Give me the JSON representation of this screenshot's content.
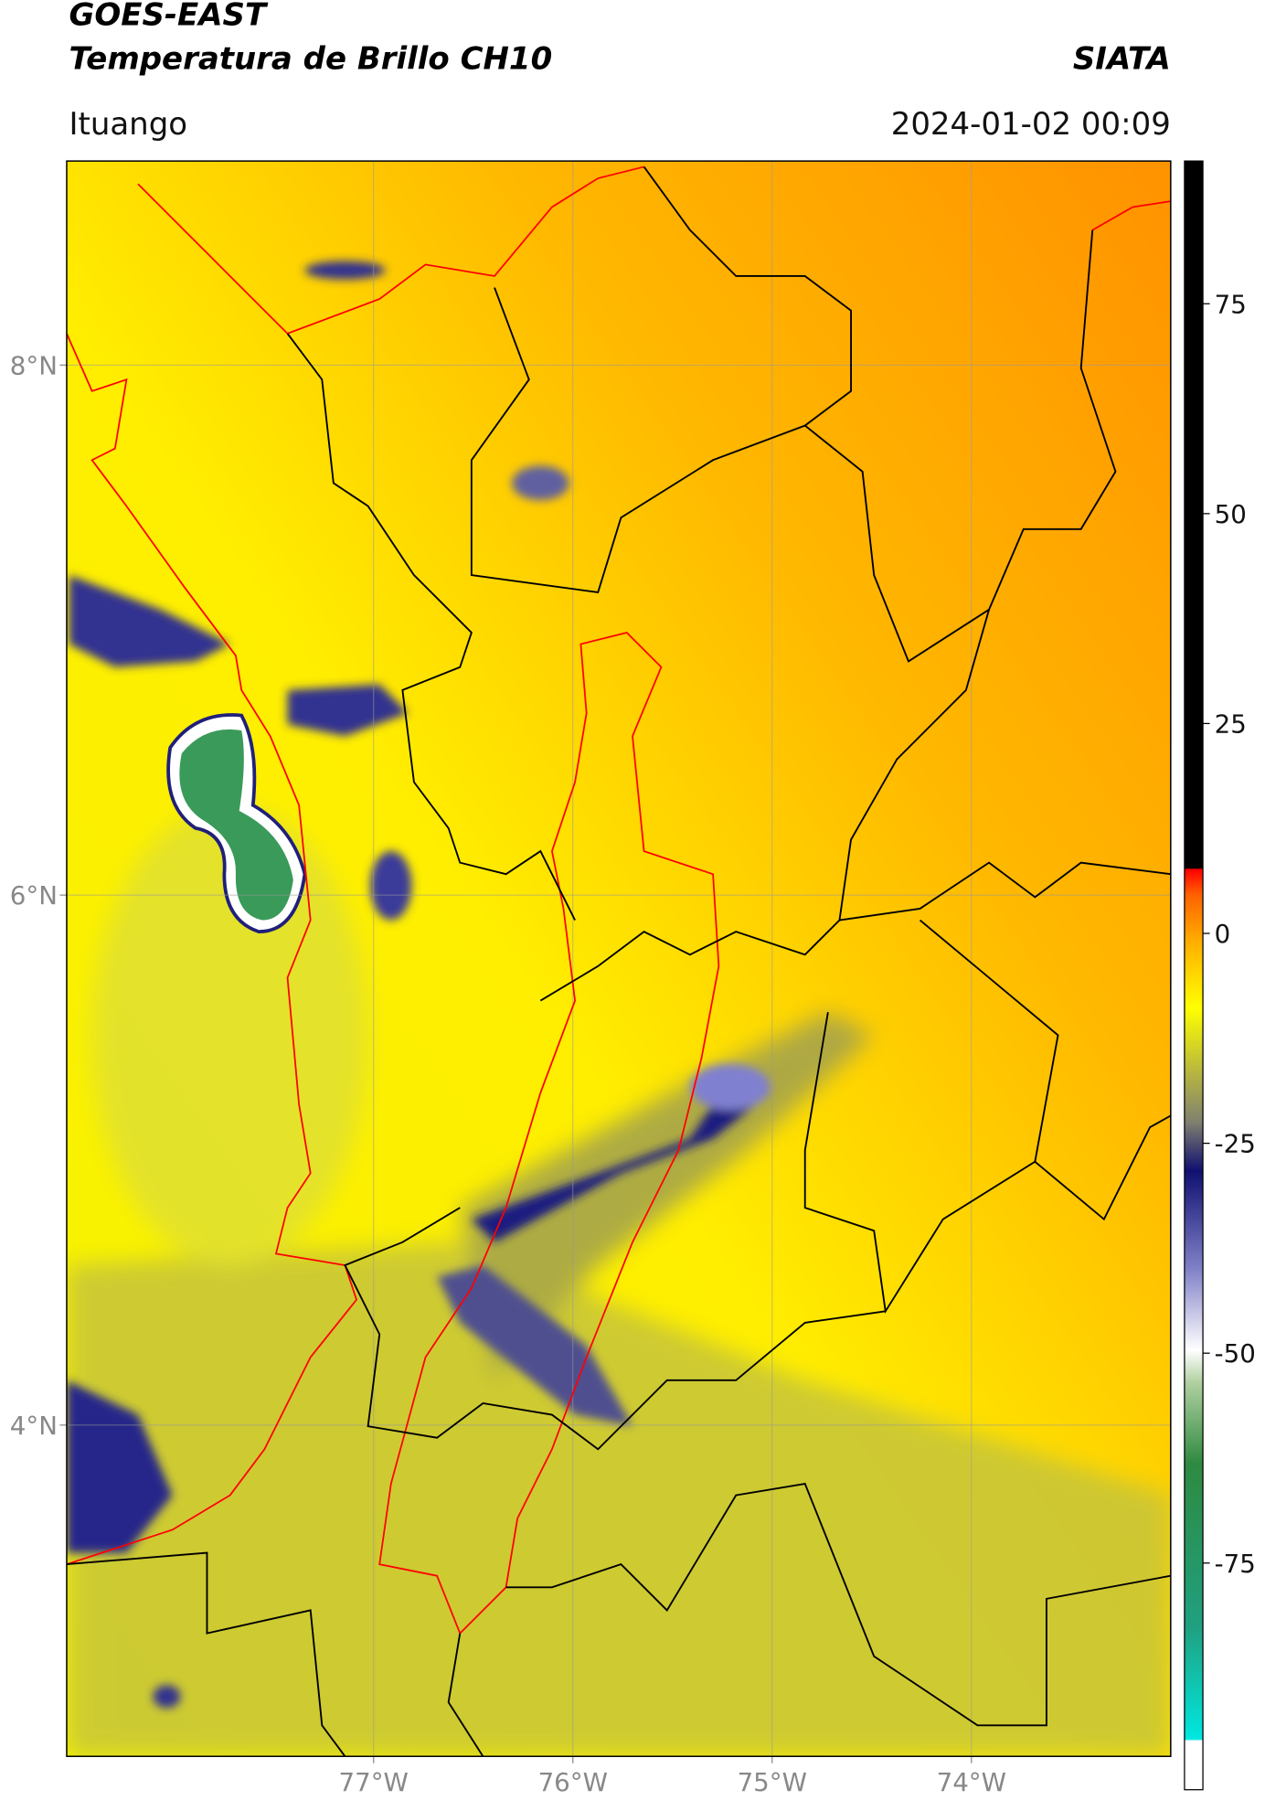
{
  "header": {
    "title": "GOES-EAST",
    "subtitle": "Temperatura de Brillo CH10",
    "brand": "SIATA",
    "location": "Ituango",
    "datetime": "2024-01-02 00:09"
  },
  "map": {
    "latlim": [
      2.75,
      8.77
    ],
    "lonlim": [
      -78.54,
      -73.0
    ],
    "lat_ticks": [
      {
        "value": 8,
        "label": "8°N"
      },
      {
        "value": 6,
        "label": "6°N"
      },
      {
        "value": 4,
        "label": "4°N"
      }
    ],
    "lon_ticks": [
      {
        "value": -77,
        "label": "77°W"
      },
      {
        "value": -76,
        "label": "76°W"
      },
      {
        "value": -75,
        "label": "75°W"
      },
      {
        "value": -74,
        "label": "74°W"
      }
    ]
  },
  "colorbar": {
    "lim": [
      -102,
      92
    ],
    "ticks": [
      75,
      50,
      25,
      0,
      -25,
      -50,
      -75
    ]
  }
}
